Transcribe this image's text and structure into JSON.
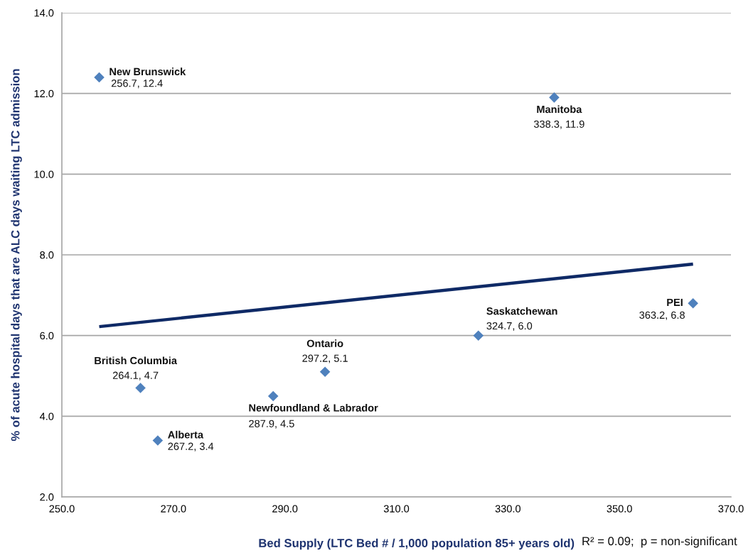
{
  "chart_data": {
    "type": "scatter",
    "xlabel": "Bed Supply (LTC Bed # / 1,000 population 85+ years old)",
    "ylabel": "% of acute hospital days that are ALC days waiting LTC admission",
    "annotations": [
      "R² = 0.09;  p = non-significant",
      {
        "text": "New Brunswick",
        "x": 256.7,
        "y": 12.4
      },
      {
        "text": "British Columbia",
        "x": 264.1,
        "y": 4.7
      },
      {
        "text": "Alberta",
        "x": 267.2,
        "y": 3.4
      },
      {
        "text": "Newfoundland & Labrador",
        "x": 287.9,
        "y": 4.5
      },
      {
        "text": "Ontario",
        "x": 297.2,
        "y": 5.1
      },
      {
        "text": "Saskatchewan",
        "x": 324.7,
        "y": 6.0
      },
      {
        "text": "Manitoba",
        "x": 338.3,
        "y": 11.9
      },
      {
        "text": "PEI",
        "x": 363.2,
        "y": 6.8
      }
    ],
    "series": [
      {
        "type": "scatter",
        "color": "#4f81bd",
        "marker": "diamond",
        "x": [
          256.7,
          264.1,
          267.2,
          287.9,
          297.2,
          324.7,
          338.3,
          363.2
        ],
        "values": [
          12.4,
          4.7,
          3.4,
          4.5,
          5.1,
          6.0,
          11.9,
          6.8
        ],
        "value_labels": [
          "256.7, 12.4",
          "264.1, 4.7",
          "267.2, 3.4",
          "287.9, 4.5",
          "297.2, 5.1",
          "324.7, 6.0",
          "338.3, 11.9",
          "363.2, 6.8"
        ]
      },
      {
        "type": "line",
        "color": "#0f2a66",
        "x": [
          256.7,
          363.2
        ],
        "values": [
          6.22,
          7.77
        ],
        "line_style": "solid",
        "marker": "none"
      }
    ],
    "xlim": [
      250,
      370
    ],
    "xticks": [
      {
        "value": 250,
        "label": "250.0"
      },
      {
        "value": 270,
        "label": "270.0"
      },
      {
        "value": 290,
        "label": "290.0"
      },
      {
        "value": 310,
        "label": "310.0"
      },
      {
        "value": 330,
        "label": "330.0"
      },
      {
        "value": 350,
        "label": "350.0"
      },
      {
        "value": 370,
        "label": "370.0"
      }
    ],
    "ylim": [
      2,
      14
    ],
    "yticks": [
      {
        "value": 2,
        "label": "2.0"
      },
      {
        "value": 4,
        "label": "4.0"
      },
      {
        "value": 6,
        "label": "6.0"
      },
      {
        "value": 8,
        "label": "8.0"
      },
      {
        "value": 10,
        "label": "10.0"
      },
      {
        "value": 12,
        "label": "12.0"
      },
      {
        "value": 14,
        "label": "14.0"
      }
    ],
    "grid": "y",
    "legend": false
  }
}
